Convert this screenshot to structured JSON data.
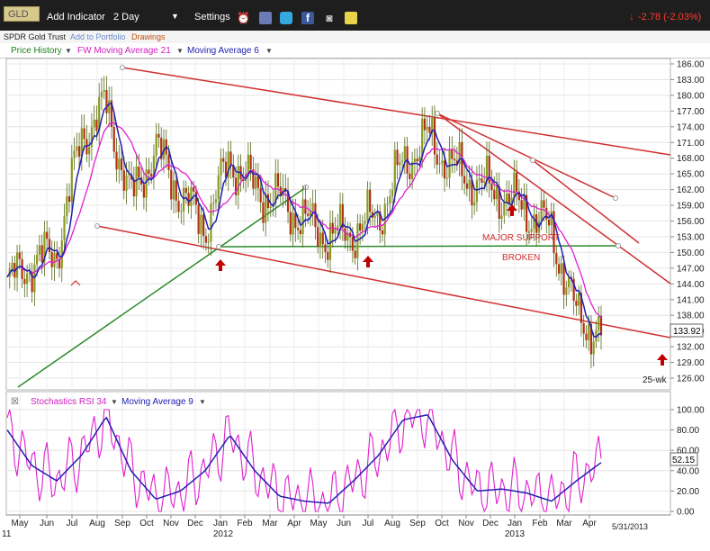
{
  "toolbar": {
    "ticker": "GLD",
    "add_indicator": "Add Indicator",
    "timeframe": "2 Day",
    "settings": "Settings",
    "change": "-2.78 (-2.03%)",
    "change_color": "#d81e05"
  },
  "subbar": {
    "name": "SPDR Gold Trust",
    "add_portfolio": "Add to Portfolio",
    "drawings": "Drawings"
  },
  "legend_price": {
    "price_history": "Price History",
    "ma21": "FW Moving Average 21",
    "ma6": "Moving Average 6"
  },
  "legend_rsi": {
    "rsi": "Stochastics RSI 34",
    "ma9": "Moving Average 9"
  },
  "colors": {
    "price_green": "#1a7f1a",
    "ma21_magenta": "#e020d0",
    "ma6_blue": "#2020b0",
    "trend_red": "#d03030",
    "support_green": "#2a8a2a",
    "arrow_red": "#c00000"
  },
  "chart_data": [
    {
      "type": "line",
      "panel": "price",
      "series_names": [
        "Price History",
        "FW Moving Average 21",
        "Moving Average 6"
      ],
      "y_ticks": [
        "186.00",
        "183.00",
        "180.00",
        "177.00",
        "174.00",
        "171.00",
        "168.00",
        "165.00",
        "162.00",
        "159.00",
        "156.00",
        "153.00",
        "150.00",
        "147.00",
        "144.00",
        "141.00",
        "138.00",
        "135.00",
        "132.00",
        "129.00",
        "126.00"
      ],
      "ylim": [
        125,
        187
      ],
      "last_price": "133.92",
      "period_label": "25-wk",
      "annotations": [
        "MAJOR SUPPORT",
        "BROKEN"
      ],
      "closes_by_month": [
        {
          "month": "May 2011",
          "value": 144
        },
        {
          "month": "Jun 2011",
          "value": 148
        },
        {
          "month": "Jul 2011",
          "value": 150
        },
        {
          "month": "Aug 2011",
          "value": 172
        },
        {
          "month": "Sep 2011",
          "value": 178
        },
        {
          "month": "Oct 2011",
          "value": 160
        },
        {
          "month": "Nov 2011",
          "value": 170
        },
        {
          "month": "Dec 2011",
          "value": 161
        },
        {
          "month": "Jan 2012",
          "value": 155
        },
        {
          "month": "Feb 2012",
          "value": 168
        },
        {
          "month": "Mar 2012",
          "value": 162
        },
        {
          "month": "Apr 2012",
          "value": 160
        },
        {
          "month": "May 2012",
          "value": 156
        },
        {
          "month": "Jun 2012",
          "value": 153
        },
        {
          "month": "Jul 2012",
          "value": 154
        },
        {
          "month": "Aug 2012",
          "value": 157
        },
        {
          "month": "Sep 2012",
          "value": 167
        },
        {
          "month": "Oct 2012",
          "value": 172
        },
        {
          "month": "Nov 2012",
          "value": 166
        },
        {
          "month": "Dec 2012",
          "value": 163
        },
        {
          "month": "Jan 2013",
          "value": 161
        },
        {
          "month": "Feb 2013",
          "value": 158
        },
        {
          "month": "Mar 2013",
          "value": 154
        },
        {
          "month": "Apr 2013",
          "value": 138
        },
        {
          "month": "May 2013",
          "value": 134
        }
      ]
    },
    {
      "type": "line",
      "panel": "rsi",
      "series_names": [
        "Stochastics RSI 34",
        "Moving Average 9"
      ],
      "y_ticks": [
        "100.00",
        "80.00",
        "60.00",
        "40.00",
        "20.00",
        "0.00"
      ],
      "ylim": [
        0,
        100
      ],
      "last_value": "52.15",
      "ma9_by_month": [
        {
          "month": "May 2011",
          "value": 80
        },
        {
          "month": "Jun 2011",
          "value": 45
        },
        {
          "month": "Jul 2011",
          "value": 30
        },
        {
          "month": "Aug 2011",
          "value": 55
        },
        {
          "month": "Sep 2011",
          "value": 93
        },
        {
          "month": "Oct 2011",
          "value": 40
        },
        {
          "month": "Nov 2011",
          "value": 12
        },
        {
          "month": "Dec 2011",
          "value": 20
        },
        {
          "month": "Jan 2012",
          "value": 40
        },
        {
          "month": "Feb 2012",
          "value": 75
        },
        {
          "month": "Mar 2012",
          "value": 40
        },
        {
          "month": "Apr 2012",
          "value": 15
        },
        {
          "month": "May 2012",
          "value": 10
        },
        {
          "month": "Jun 2012",
          "value": 8
        },
        {
          "month": "Jul 2012",
          "value": 30
        },
        {
          "month": "Aug 2012",
          "value": 55
        },
        {
          "month": "Sep 2012",
          "value": 90
        },
        {
          "month": "Oct 2012",
          "value": 95
        },
        {
          "month": "Nov 2012",
          "value": 50
        },
        {
          "month": "Dec 2012",
          "value": 20
        },
        {
          "month": "Jan 2013",
          "value": 22
        },
        {
          "month": "Feb 2013",
          "value": 18
        },
        {
          "month": "Mar 2013",
          "value": 10
        },
        {
          "month": "Apr 2013",
          "value": 30
        },
        {
          "month": "May 2013",
          "value": 48
        }
      ]
    }
  ],
  "x_axis": {
    "months": [
      "May",
      "Jun",
      "Jul",
      "Aug",
      "Sep",
      "Oct",
      "Nov",
      "Dec",
      "Jan",
      "Feb",
      "Mar",
      "Apr",
      "May",
      "Jun",
      "Jul",
      "Aug",
      "Sep",
      "Oct",
      "Nov",
      "Dec",
      "Jan",
      "Feb",
      "Mar",
      "Apr"
    ],
    "years": [
      "11",
      "2012",
      "2013"
    ],
    "end_date": "5/31/2013"
  }
}
